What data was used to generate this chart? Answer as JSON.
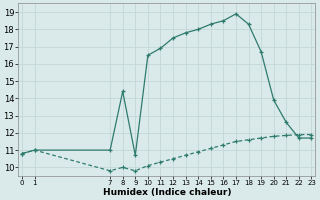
{
  "xlabel": "Humidex (Indice chaleur)",
  "bg_color": "#daeaea",
  "grid_color": "#c4d8d8",
  "line_color": "#2e7b6e",
  "x_upper": [
    0,
    1,
    7,
    8,
    9,
    10,
    11,
    12,
    13,
    14,
    15,
    16,
    17,
    18,
    19,
    20,
    21,
    22,
    23
  ],
  "y_upper": [
    10.8,
    11.0,
    11.0,
    14.4,
    10.7,
    16.5,
    16.9,
    17.5,
    17.8,
    18.0,
    18.3,
    18.5,
    18.9,
    18.3,
    16.7,
    13.9,
    12.6,
    11.7,
    11.7
  ],
  "x_lower": [
    0,
    1,
    7,
    8,
    9,
    10,
    11,
    12,
    13,
    14,
    15,
    16,
    17,
    18,
    19,
    20,
    21,
    22,
    23
  ],
  "y_lower": [
    10.8,
    11.0,
    9.8,
    10.0,
    9.8,
    10.1,
    10.3,
    10.5,
    10.7,
    10.9,
    11.1,
    11.3,
    11.5,
    11.6,
    11.7,
    11.8,
    11.85,
    11.9,
    11.9
  ],
  "xlim": [
    -0.3,
    23.3
  ],
  "ylim": [
    9.5,
    19.5
  ],
  "yticks": [
    10,
    11,
    12,
    13,
    14,
    15,
    16,
    17,
    18,
    19
  ],
  "xtick_positions": [
    0,
    1,
    7,
    8,
    9,
    10,
    11,
    12,
    13,
    14,
    15,
    16,
    17,
    18,
    19,
    20,
    21,
    22,
    23
  ],
  "xtick_labels": [
    "0",
    "1",
    "7",
    "8",
    "9",
    "10",
    "11",
    "12",
    "13",
    "14",
    "15",
    "16",
    "17",
    "18",
    "19",
    "20",
    "21",
    "22",
    "23"
  ]
}
